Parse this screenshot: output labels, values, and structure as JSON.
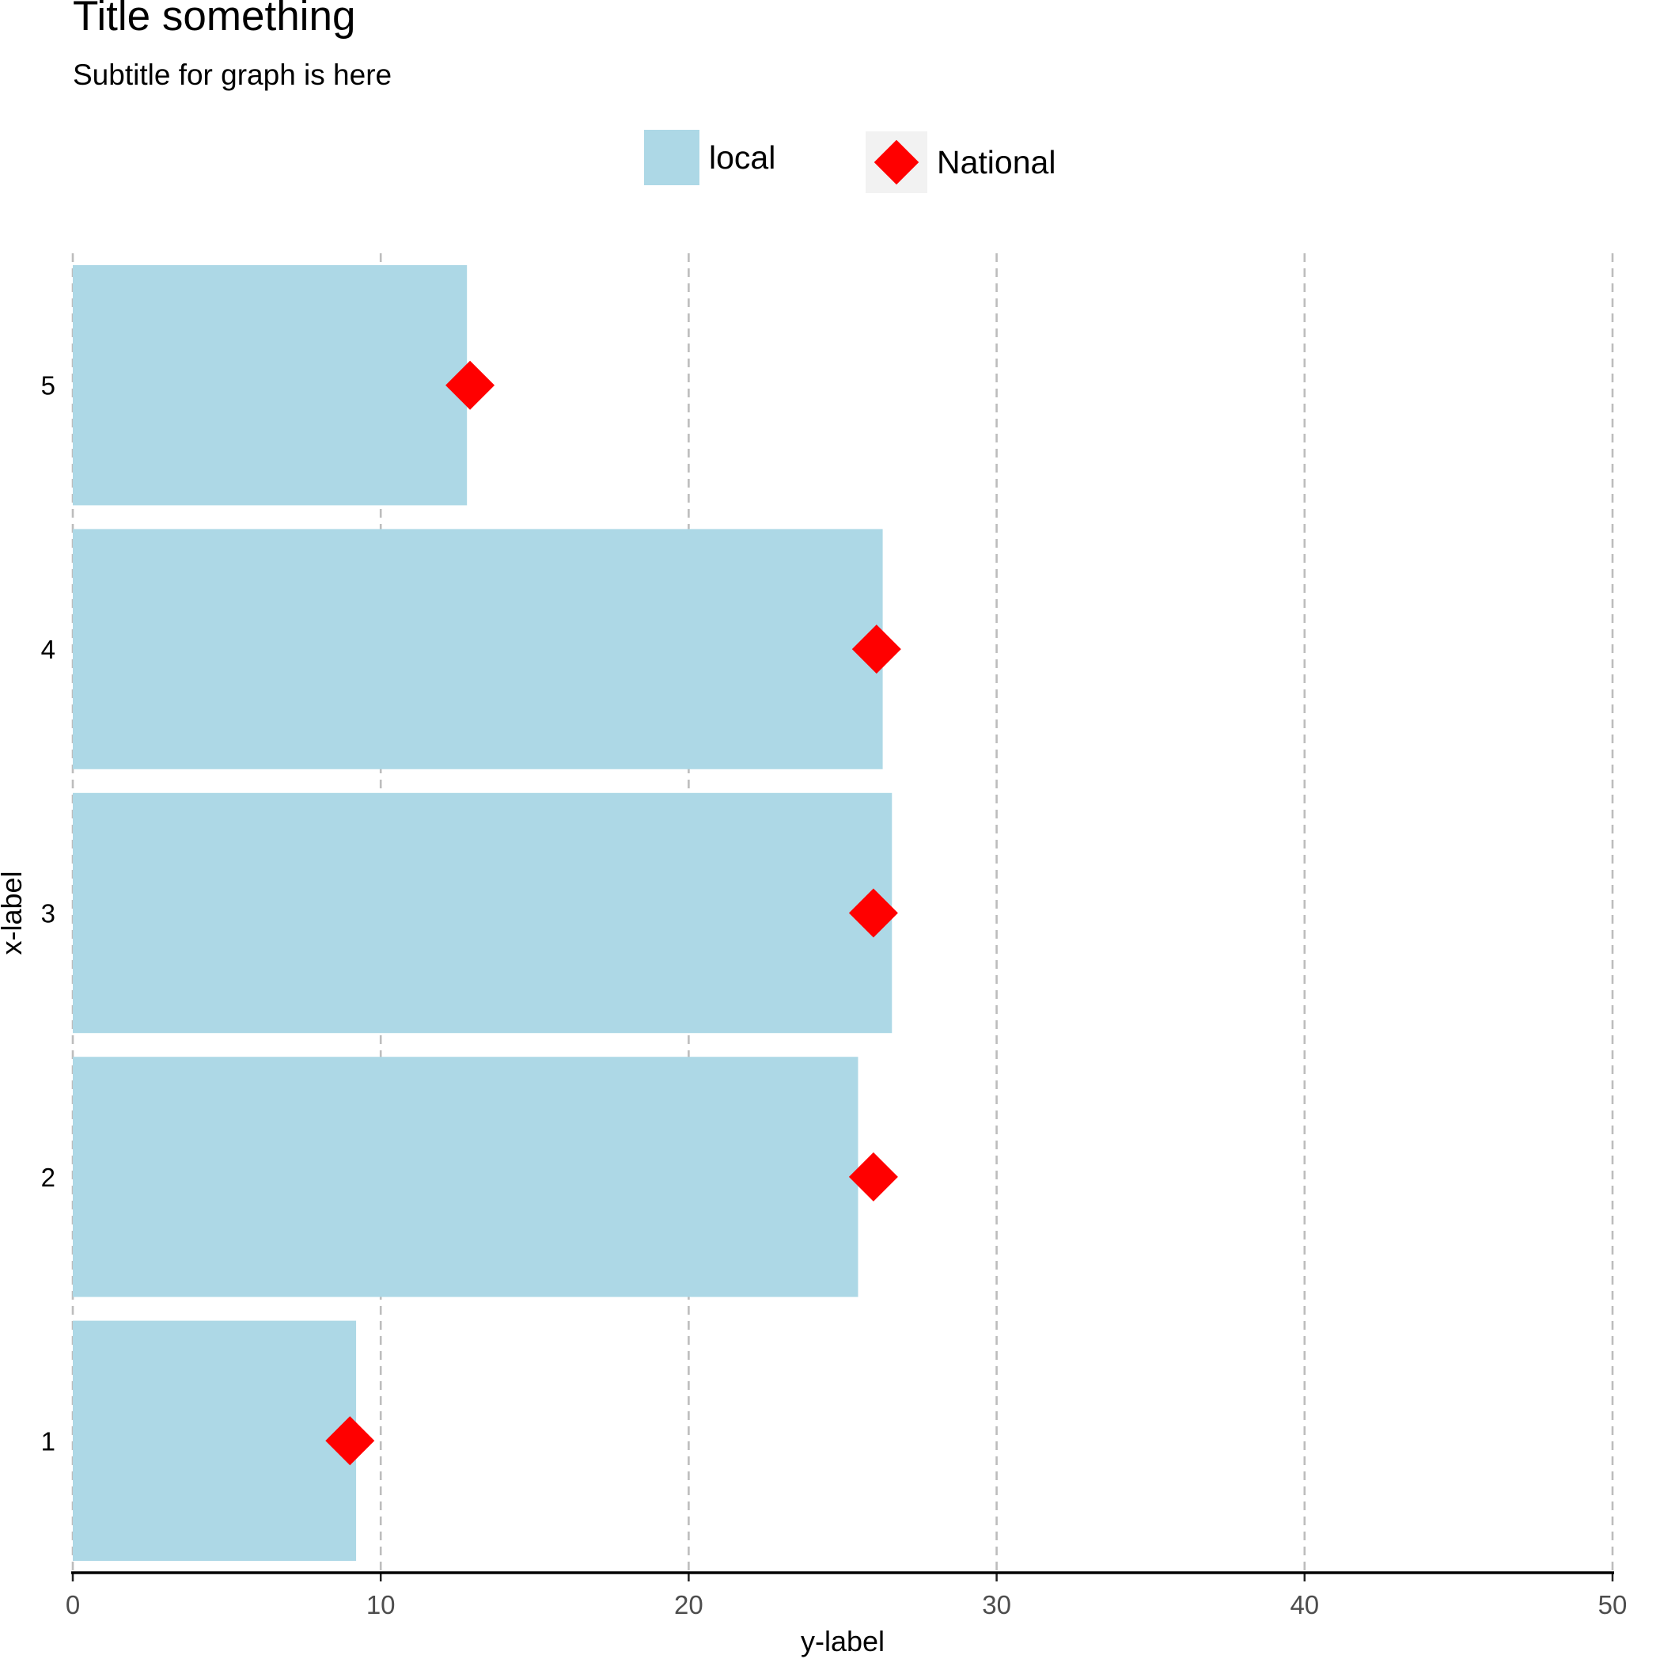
{
  "chart_data": {
    "type": "bar",
    "orientation": "horizontal",
    "title": "Title something",
    "subtitle": "Subtitle for graph is here",
    "xlabel": "y-label",
    "ylabel": "x-label",
    "categories": [
      "1",
      "2",
      "3",
      "4",
      "5"
    ],
    "series": [
      {
        "name": "local",
        "kind": "bar",
        "color": "#add8e6",
        "values": [
          9.2,
          25.5,
          26.6,
          26.3,
          12.8
        ]
      },
      {
        "name": "National",
        "kind": "point",
        "marker": "diamond",
        "color": "#ff0000",
        "values": [
          9.0,
          26.0,
          26.0,
          26.1,
          12.9
        ]
      }
    ],
    "value_axis": {
      "range": [
        0,
        50
      ],
      "ticks": [
        "0",
        "10",
        "20",
        "30",
        "40",
        "50"
      ]
    },
    "grid": "vertical dashed",
    "legend_position": "top"
  }
}
